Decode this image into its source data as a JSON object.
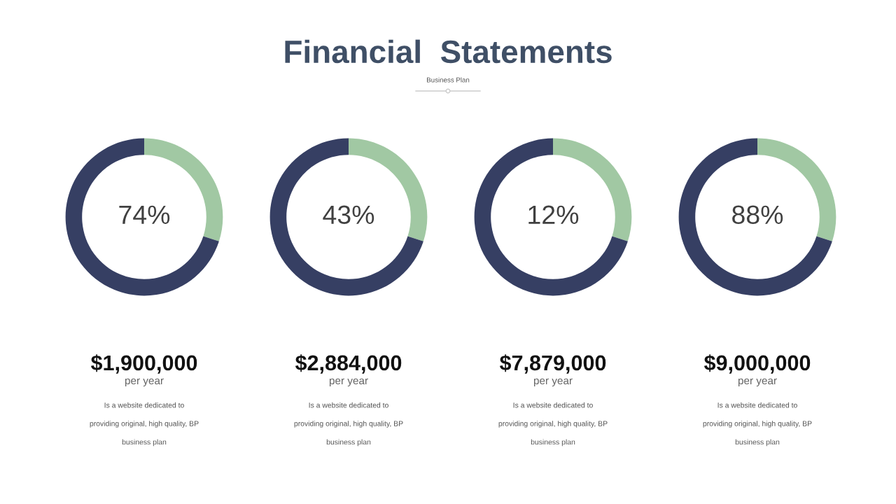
{
  "chart_data": [
    {
      "type": "other",
      "title": "Financial  Statements",
      "subtitle": "Business Plan"
    },
    {
      "type": "donut",
      "categories": [
        null,
        null
      ],
      "values": [
        30,
        70
      ],
      "colors": [
        "#a1c8a3",
        "#363f63"
      ],
      "annotations": [
        "74%",
        "$1,900,000",
        "per year",
        "Is a website dedicated to\nproviding original, high quality, BP\nbusiness plan"
      ]
    },
    {
      "type": "donut",
      "categories": [
        null,
        null
      ],
      "values": [
        30,
        70
      ],
      "colors": [
        "#a1c8a3",
        "#363f63"
      ],
      "annotations": [
        "43%",
        "$2,884,000",
        "per year",
        "Is a website dedicated to\nproviding original, high quality, BP\nbusiness plan"
      ]
    },
    {
      "type": "donut",
      "categories": [
        null,
        null
      ],
      "values": [
        30,
        70
      ],
      "colors": [
        "#a1c8a3",
        "#363f63"
      ],
      "annotations": [
        "12%",
        "$7,879,000",
        "per year",
        "Is a website dedicated to\nproviding original, high quality, BP\nbusiness plan"
      ]
    },
    {
      "type": "donut",
      "categories": [
        null,
        null
      ],
      "values": [
        30,
        70
      ],
      "colors": [
        "#a1c8a3",
        "#363f63"
      ],
      "annotations": [
        "88%",
        "$9,000,000",
        "per year",
        "Is a website dedicated to\nproviding original, high quality, BP\nbusiness plan"
      ]
    }
  ]
}
